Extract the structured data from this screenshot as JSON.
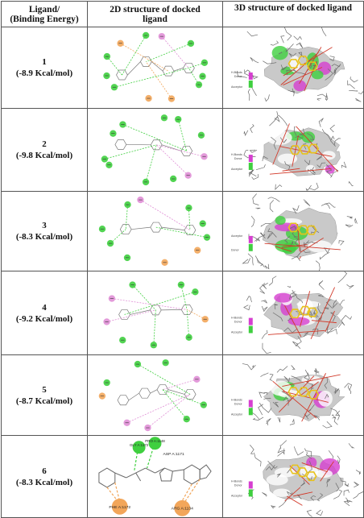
{
  "headers": {
    "col1_line1": "Ligand/",
    "col1_line2": "(Binding Energy)",
    "col2_line1": "2D structure of docked",
    "col2_line2": "ligand",
    "col3": "3D structure of docked ligand"
  },
  "rows": [
    {
      "ligand": "1",
      "energy": "(-8.9 Kcal/mol)",
      "legend_top": "H-Bonds",
      "legend_mid": "Donor",
      "legend_bottom": "Acceptor"
    },
    {
      "ligand": "2",
      "energy": "(-9.8 Kcal/mol)",
      "legend_top": "H-Bonds",
      "legend_mid": "Donor",
      "legend_bottom": "Acceptor"
    },
    {
      "ligand": "3",
      "energy": "(-8.3 Kcal/mol)",
      "legend_top": "Acceptor",
      "legend_mid": "",
      "legend_bottom": "Donor"
    },
    {
      "ligand": "4",
      "energy": "(-9.2 Kcal/mol)",
      "legend_top": "H-Bonds",
      "legend_mid": "Donor",
      "legend_bottom": "Acceptor"
    },
    {
      "ligand": "5",
      "energy": "(-8.7 Kcal/mol)",
      "legend_top": "H-Bonds",
      "legend_mid": "Donor",
      "legend_bottom": "Acceptor"
    },
    {
      "ligand": "6",
      "energy": "(-8.3 Kcal/mol)",
      "legend_top": "H-Bonds",
      "legend_mid": "Donor",
      "legend_bottom": "Acceptor"
    }
  ],
  "row6_labels": {
    "res_a": "GLY A:1172",
    "res_b": "PRO A:1148",
    "res_c": "ASP A:1171",
    "res_d": "PHE A:1172",
    "res_e": "ARG A:1134"
  },
  "colors": {
    "hbond_green": "#3fcf3f",
    "pi_alkyl_pink": "#e08fd6",
    "pi_orange": "#f2a65a",
    "donor_magenta": "#d63fd0",
    "ligand_yellow": "#e8c21a"
  }
}
